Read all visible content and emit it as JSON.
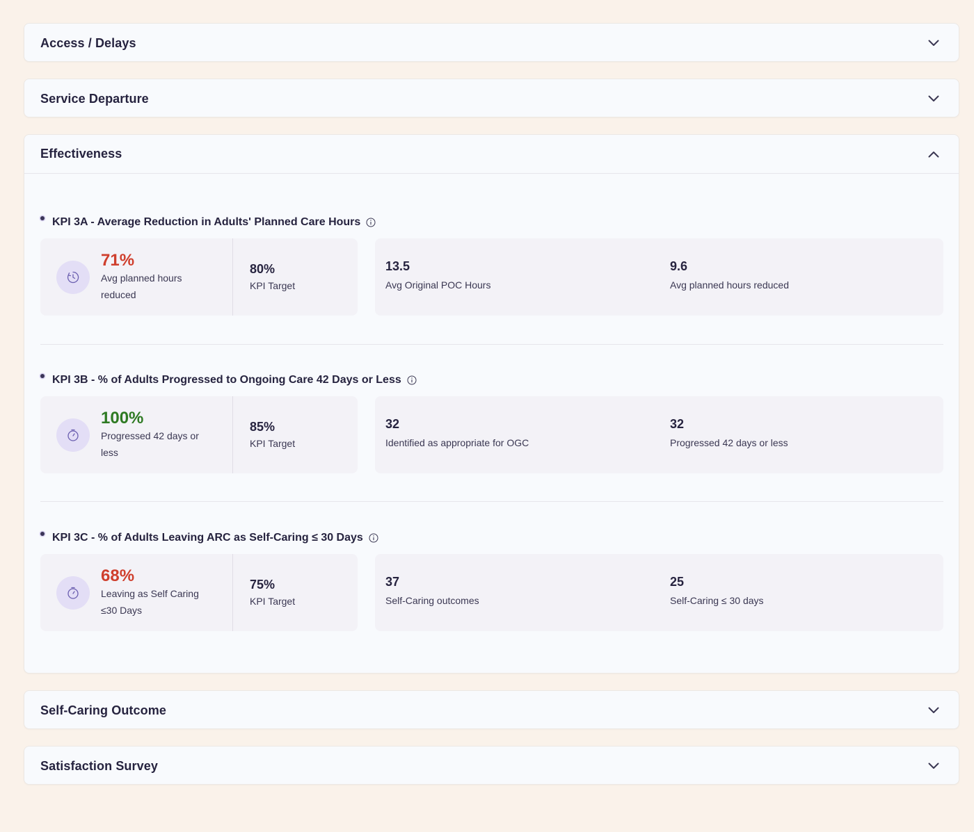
{
  "sections": {
    "access": {
      "title": "Access / Delays",
      "expanded": false
    },
    "departure": {
      "title": "Service Departure",
      "expanded": false
    },
    "effectiveness": {
      "title": "Effectiveness",
      "expanded": true
    },
    "selfcaring": {
      "title": "Self-Caring Outcome",
      "expanded": false
    },
    "satisfaction": {
      "title": "Satisfaction Survey",
      "expanded": false
    }
  },
  "kpis": [
    {
      "heading": "KPI 3A - Average Reduction in Adults' Planned Care Hours",
      "icon": "clock-icon",
      "value": "71%",
      "value_status": "below-target",
      "value_color": "#cf3f2d",
      "value_label": "Avg planned hours reduced",
      "target": "80%",
      "target_label": "KPI Target",
      "stats": [
        {
          "value": "13.5",
          "label": "Avg Original POC Hours"
        },
        {
          "value": "9.6",
          "label": "Avg planned hours reduced"
        }
      ]
    },
    {
      "heading": "KPI 3B - % of Adults Progressed to Ongoing Care 42 Days or Less",
      "icon": "stopwatch-icon",
      "value": "100%",
      "value_status": "met-target",
      "value_color": "#2e7a23",
      "value_label": "Progressed 42 days or less",
      "target": "85%",
      "target_label": "KPI Target",
      "stats": [
        {
          "value": "32",
          "label": "Identified as appropriate for OGC"
        },
        {
          "value": "32",
          "label": "Progressed 42 days or less"
        }
      ]
    },
    {
      "heading": "KPI 3C - % of Adults Leaving ARC as Self-Caring ≤ 30 Days",
      "icon": "stopwatch-icon",
      "value": "68%",
      "value_status": "below-target",
      "value_color": "#cf3f2d",
      "value_label": "Leaving as Self Caring ≤30 Days",
      "target": "75%",
      "target_label": "KPI Target",
      "stats": [
        {
          "value": "37",
          "label": "Self-Caring outcomes"
        },
        {
          "value": "25",
          "label": "Self-Caring ≤ 30 days"
        }
      ]
    }
  ]
}
